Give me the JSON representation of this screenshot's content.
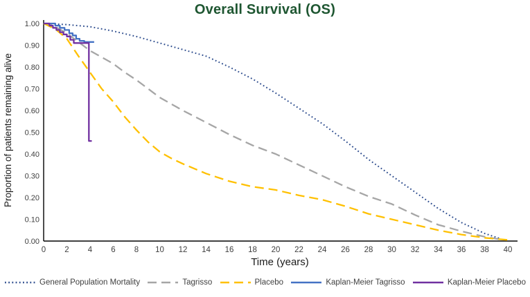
{
  "chart_data": {
    "type": "line",
    "title": "Overall Survival (OS)",
    "title_color": "#1e5631",
    "xlabel": "Time (years)",
    "ylabel": "Proportion of patients remaining alive",
    "xlim": [
      0,
      40
    ],
    "ylim": [
      0.0,
      1.0
    ],
    "xticks": [
      0,
      2,
      4,
      6,
      8,
      10,
      12,
      14,
      16,
      18,
      20,
      22,
      24,
      26,
      28,
      30,
      32,
      34,
      36,
      38,
      40
    ],
    "ytick_labels": [
      "0.00",
      "0.10",
      "0.20",
      "0.30",
      "0.40",
      "0.50",
      "0.60",
      "0.70",
      "0.80",
      "0.90",
      "1.00"
    ],
    "grid": false,
    "legend_position": "bottom",
    "axis_color": "#000000",
    "tick_label_color": "#404040",
    "series": [
      {
        "name": "General Population Mortality",
        "color": "#2e4d8e",
        "style": "dotted",
        "points": [
          [
            0,
            1.0
          ],
          [
            2,
            0.995
          ],
          [
            4,
            0.985
          ],
          [
            6,
            0.965
          ],
          [
            8,
            0.94
          ],
          [
            10,
            0.91
          ],
          [
            12,
            0.88
          ],
          [
            14,
            0.85
          ],
          [
            16,
            0.8
          ],
          [
            18,
            0.745
          ],
          [
            20,
            0.68
          ],
          [
            22,
            0.61
          ],
          [
            24,
            0.54
          ],
          [
            26,
            0.46
          ],
          [
            28,
            0.375
          ],
          [
            30,
            0.3
          ],
          [
            32,
            0.225
          ],
          [
            34,
            0.15
          ],
          [
            36,
            0.085
          ],
          [
            38,
            0.035
          ],
          [
            39.3,
            0.012
          ]
        ]
      },
      {
        "name": "Tagrisso",
        "color": "#a6a6a6",
        "style": "dashed",
        "points": [
          [
            0,
            1.0
          ],
          [
            1,
            0.985
          ],
          [
            2,
            0.955
          ],
          [
            3,
            0.915
          ],
          [
            4,
            0.875
          ],
          [
            5,
            0.845
          ],
          [
            6,
            0.815
          ],
          [
            7,
            0.775
          ],
          [
            8,
            0.74
          ],
          [
            9,
            0.7
          ],
          [
            10,
            0.66
          ],
          [
            11,
            0.63
          ],
          [
            12,
            0.6
          ],
          [
            14,
            0.545
          ],
          [
            16,
            0.49
          ],
          [
            18,
            0.44
          ],
          [
            20,
            0.4
          ],
          [
            22,
            0.35
          ],
          [
            24,
            0.3
          ],
          [
            26,
            0.25
          ],
          [
            28,
            0.205
          ],
          [
            30,
            0.17
          ],
          [
            32,
            0.12
          ],
          [
            34,
            0.075
          ],
          [
            36,
            0.045
          ],
          [
            38,
            0.02
          ],
          [
            39.3,
            0.008
          ]
        ]
      },
      {
        "name": "Placebo",
        "color": "#ffc000",
        "style": "dashed",
        "points": [
          [
            0,
            1.0
          ],
          [
            1,
            0.975
          ],
          [
            2,
            0.93
          ],
          [
            3,
            0.85
          ],
          [
            4,
            0.775
          ],
          [
            5,
            0.7
          ],
          [
            6,
            0.64
          ],
          [
            7,
            0.57
          ],
          [
            8,
            0.51
          ],
          [
            9,
            0.455
          ],
          [
            10,
            0.41
          ],
          [
            11,
            0.38
          ],
          [
            12,
            0.355
          ],
          [
            14,
            0.31
          ],
          [
            16,
            0.275
          ],
          [
            18,
            0.25
          ],
          [
            20,
            0.235
          ],
          [
            22,
            0.21
          ],
          [
            24,
            0.19
          ],
          [
            26,
            0.16
          ],
          [
            28,
            0.125
          ],
          [
            30,
            0.1
          ],
          [
            32,
            0.075
          ],
          [
            34,
            0.05
          ],
          [
            36,
            0.03
          ],
          [
            38,
            0.015
          ],
          [
            40,
            0.005
          ]
        ]
      },
      {
        "name": "Kaplan-Meier Tagrisso",
        "color": "#4472c4",
        "style": "solid",
        "points": [
          [
            0,
            1.0
          ],
          [
            1.0,
            1.0
          ],
          [
            1.0,
            0.99
          ],
          [
            1.4,
            0.99
          ],
          [
            1.4,
            0.98
          ],
          [
            1.8,
            0.98
          ],
          [
            1.8,
            0.97
          ],
          [
            2.2,
            0.97
          ],
          [
            2.2,
            0.955
          ],
          [
            2.5,
            0.955
          ],
          [
            2.5,
            0.945
          ],
          [
            2.8,
            0.945
          ],
          [
            2.8,
            0.93
          ],
          [
            3.1,
            0.93
          ],
          [
            3.1,
            0.92
          ],
          [
            3.5,
            0.92
          ],
          [
            3.5,
            0.915
          ],
          [
            4.35,
            0.915
          ]
        ]
      },
      {
        "name": "Kaplan-Meier Placebo",
        "color": "#7030a0",
        "style": "solid",
        "points": [
          [
            0,
            1.0
          ],
          [
            0.5,
            1.0
          ],
          [
            0.5,
            0.99
          ],
          [
            0.8,
            0.99
          ],
          [
            0.8,
            0.98
          ],
          [
            1.1,
            0.98
          ],
          [
            1.1,
            0.97
          ],
          [
            1.4,
            0.97
          ],
          [
            1.4,
            0.96
          ],
          [
            1.7,
            0.96
          ],
          [
            1.7,
            0.95
          ],
          [
            2.0,
            0.95
          ],
          [
            2.0,
            0.94
          ],
          [
            2.3,
            0.94
          ],
          [
            2.3,
            0.925
          ],
          [
            2.6,
            0.925
          ],
          [
            2.6,
            0.91
          ],
          [
            3.9,
            0.91
          ],
          [
            3.9,
            0.46
          ],
          [
            4.15,
            0.46
          ]
        ]
      }
    ]
  }
}
